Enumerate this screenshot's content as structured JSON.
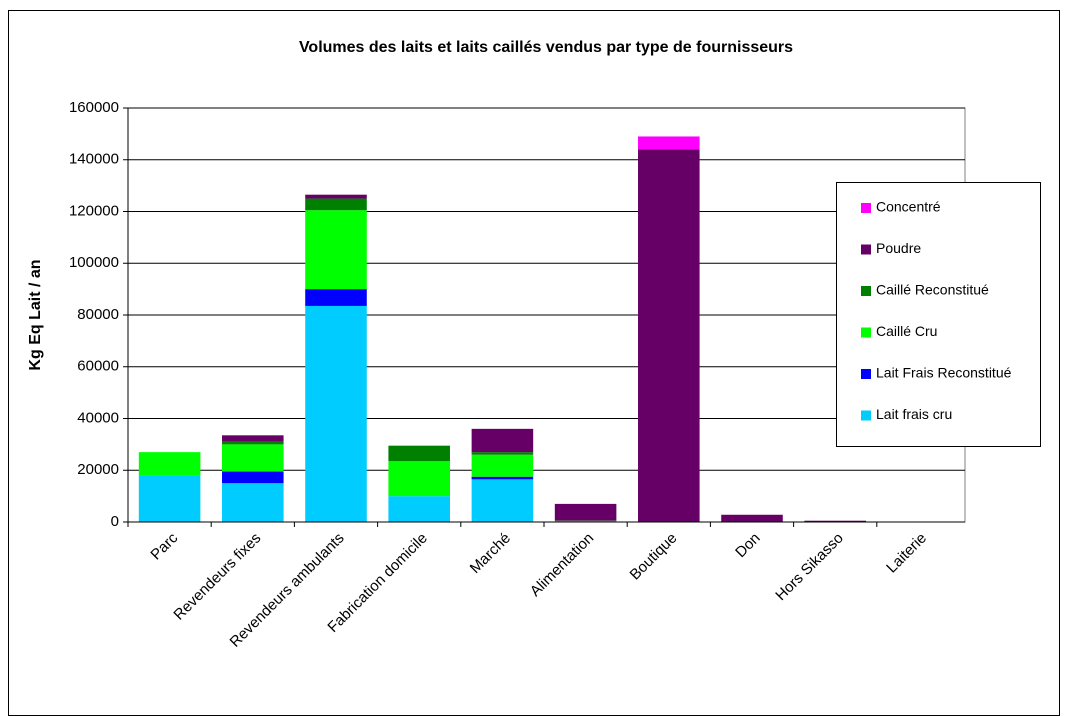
{
  "chart_data": {
    "type": "stacked-bar",
    "title": "Volumes des laits et laits caillés vendus par type de fournisseurs",
    "y_label": "Kg Eq Lait / an",
    "categories": [
      "Parc",
      "Revendeurs fixes",
      "Revendeurs ambulants",
      "Fabrication domicile",
      "Marché",
      "Alimentation",
      "Boutique",
      "Don",
      "Hors Sikasso",
      "Laiterie"
    ],
    "series": [
      {
        "name": "Lait frais cru",
        "color": "#00ccff",
        "values": [
          18000,
          15000,
          83500,
          10000,
          16500,
          0,
          0,
          0,
          0,
          0
        ]
      },
      {
        "name": "Lait Frais Reconstitué",
        "color": "#0000ff",
        "values": [
          0,
          4500,
          6500,
          0,
          1000,
          0,
          0,
          0,
          0,
          0
        ]
      },
      {
        "name": "Caillé Cru",
        "color": "#00ff00",
        "values": [
          9000,
          10500,
          30500,
          13500,
          8500,
          500,
          0,
          0,
          0,
          0
        ]
      },
      {
        "name": "Caillé Reconstitué",
        "color": "#008000",
        "values": [
          0,
          1000,
          4500,
          6000,
          1000,
          0,
          0,
          0,
          0,
          0
        ]
      },
      {
        "name": "Poudre",
        "color": "#660066",
        "values": [
          0,
          2500,
          1500,
          0,
          9000,
          6500,
          144000,
          2800,
          500,
          0
        ]
      },
      {
        "name": "Concentré",
        "color": "#ff00ff",
        "values": [
          0,
          0,
          0,
          0,
          0,
          0,
          5000,
          0,
          0,
          0
        ]
      }
    ],
    "ylim": [
      0,
      160000
    ],
    "yticks": [
      0,
      20000,
      40000,
      60000,
      80000,
      100000,
      120000,
      140000,
      160000
    ],
    "grid": true,
    "legend": "right"
  }
}
